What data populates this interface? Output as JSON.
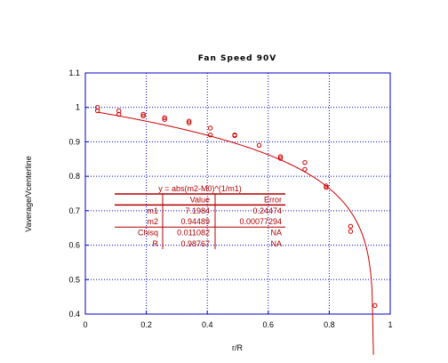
{
  "chart_data": {
    "type": "scatter",
    "title": "Fan Speed 90V",
    "xlabel": "r/R",
    "ylabel": "Vaverage/Vcenterline",
    "xlim": [
      0,
      1
    ],
    "ylim": [
      0.4,
      1.1
    ],
    "xticks": [
      "0",
      "0.2",
      "0.4",
      "0.6",
      "0.8",
      "1"
    ],
    "yticks": [
      "0.4",
      "0.5",
      "0.6",
      "0.7",
      "0.8",
      "0.9",
      "1",
      "1.1"
    ],
    "grid": true,
    "colors": {
      "data": "#cc0000",
      "fit": "#cc0000",
      "axes": "#0000cc",
      "grid": "#0000cc",
      "table": "#b00000"
    },
    "series": [
      {
        "points": [
          [
            0.04,
            1.0
          ],
          [
            0.04,
            0.99
          ],
          [
            0.11,
            0.99
          ],
          [
            0.11,
            0.98
          ],
          [
            0.19,
            0.98
          ],
          [
            0.19,
            0.975
          ],
          [
            0.26,
            0.97
          ],
          [
            0.26,
            0.965
          ],
          [
            0.34,
            0.96
          ],
          [
            0.34,
            0.955
          ],
          [
            0.41,
            0.94
          ],
          [
            0.41,
            0.92
          ],
          [
            0.49,
            0.92
          ],
          [
            0.49,
            0.918
          ],
          [
            0.57,
            0.89
          ],
          [
            0.64,
            0.857
          ],
          [
            0.64,
            0.852
          ],
          [
            0.72,
            0.84
          ],
          [
            0.72,
            0.82
          ],
          [
            0.79,
            0.772
          ],
          [
            0.79,
            0.768
          ],
          [
            0.87,
            0.655
          ],
          [
            0.87,
            0.64
          ],
          [
            0.95,
            0.425
          ]
        ]
      }
    ],
    "fit": {
      "equation": "y = abs(m2-M0)^(1/m1)",
      "m1": 7.1984,
      "m2": 0.94489,
      "x_range": [
        0.04,
        0.945
      ]
    },
    "fit_table": {
      "header": [
        "",
        "Value",
        "Error"
      ],
      "rows": [
        [
          "m1",
          "7.1984",
          "0.24474"
        ],
        [
          "m2",
          "0.94489",
          "0.00077294"
        ],
        [
          "Chisq",
          "0.011082",
          "NA"
        ],
        [
          "R",
          "0.98767",
          "NA"
        ]
      ]
    }
  }
}
